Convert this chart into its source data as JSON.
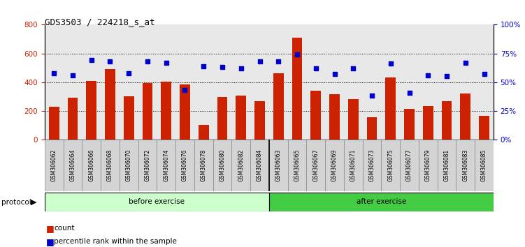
{
  "title": "GDS3503 / 224218_s_at",
  "categories": [
    "GSM306062",
    "GSM306064",
    "GSM306066",
    "GSM306068",
    "GSM306070",
    "GSM306072",
    "GSM306074",
    "GSM306076",
    "GSM306078",
    "GSM306080",
    "GSM306082",
    "GSM306084",
    "GSM306063",
    "GSM306065",
    "GSM306067",
    "GSM306069",
    "GSM306071",
    "GSM306073",
    "GSM306075",
    "GSM306077",
    "GSM306079",
    "GSM306081",
    "GSM306083",
    "GSM306085"
  ],
  "counts": [
    230,
    290,
    410,
    490,
    300,
    395,
    405,
    385,
    100,
    295,
    305,
    265,
    460,
    710,
    340,
    315,
    280,
    155,
    435,
    215,
    235,
    265,
    320,
    165
  ],
  "percentiles": [
    58,
    56,
    69,
    68,
    58,
    68,
    67,
    43,
    64,
    63,
    62,
    68,
    68,
    74,
    62,
    57,
    62,
    38,
    66,
    41,
    56,
    55,
    67,
    57
  ],
  "bar_color": "#cc2200",
  "dot_color": "#0000cc",
  "before_count": 12,
  "after_count": 12,
  "before_color": "#ccffcc",
  "after_color": "#44cc44",
  "before_label": "before exercise",
  "after_label": "after exercise",
  "protocol_label": "protocol",
  "count_label": "count",
  "percentile_label": "percentile rank within the sample",
  "ylim_left": [
    0,
    800
  ],
  "ylim_right": [
    0,
    100
  ],
  "yticks_left": [
    0,
    200,
    400,
    600,
    800
  ],
  "yticks_right": [
    0,
    25,
    50,
    75,
    100
  ],
  "background_color": "#ffffff",
  "plot_bg_color": "#e8e8e8"
}
